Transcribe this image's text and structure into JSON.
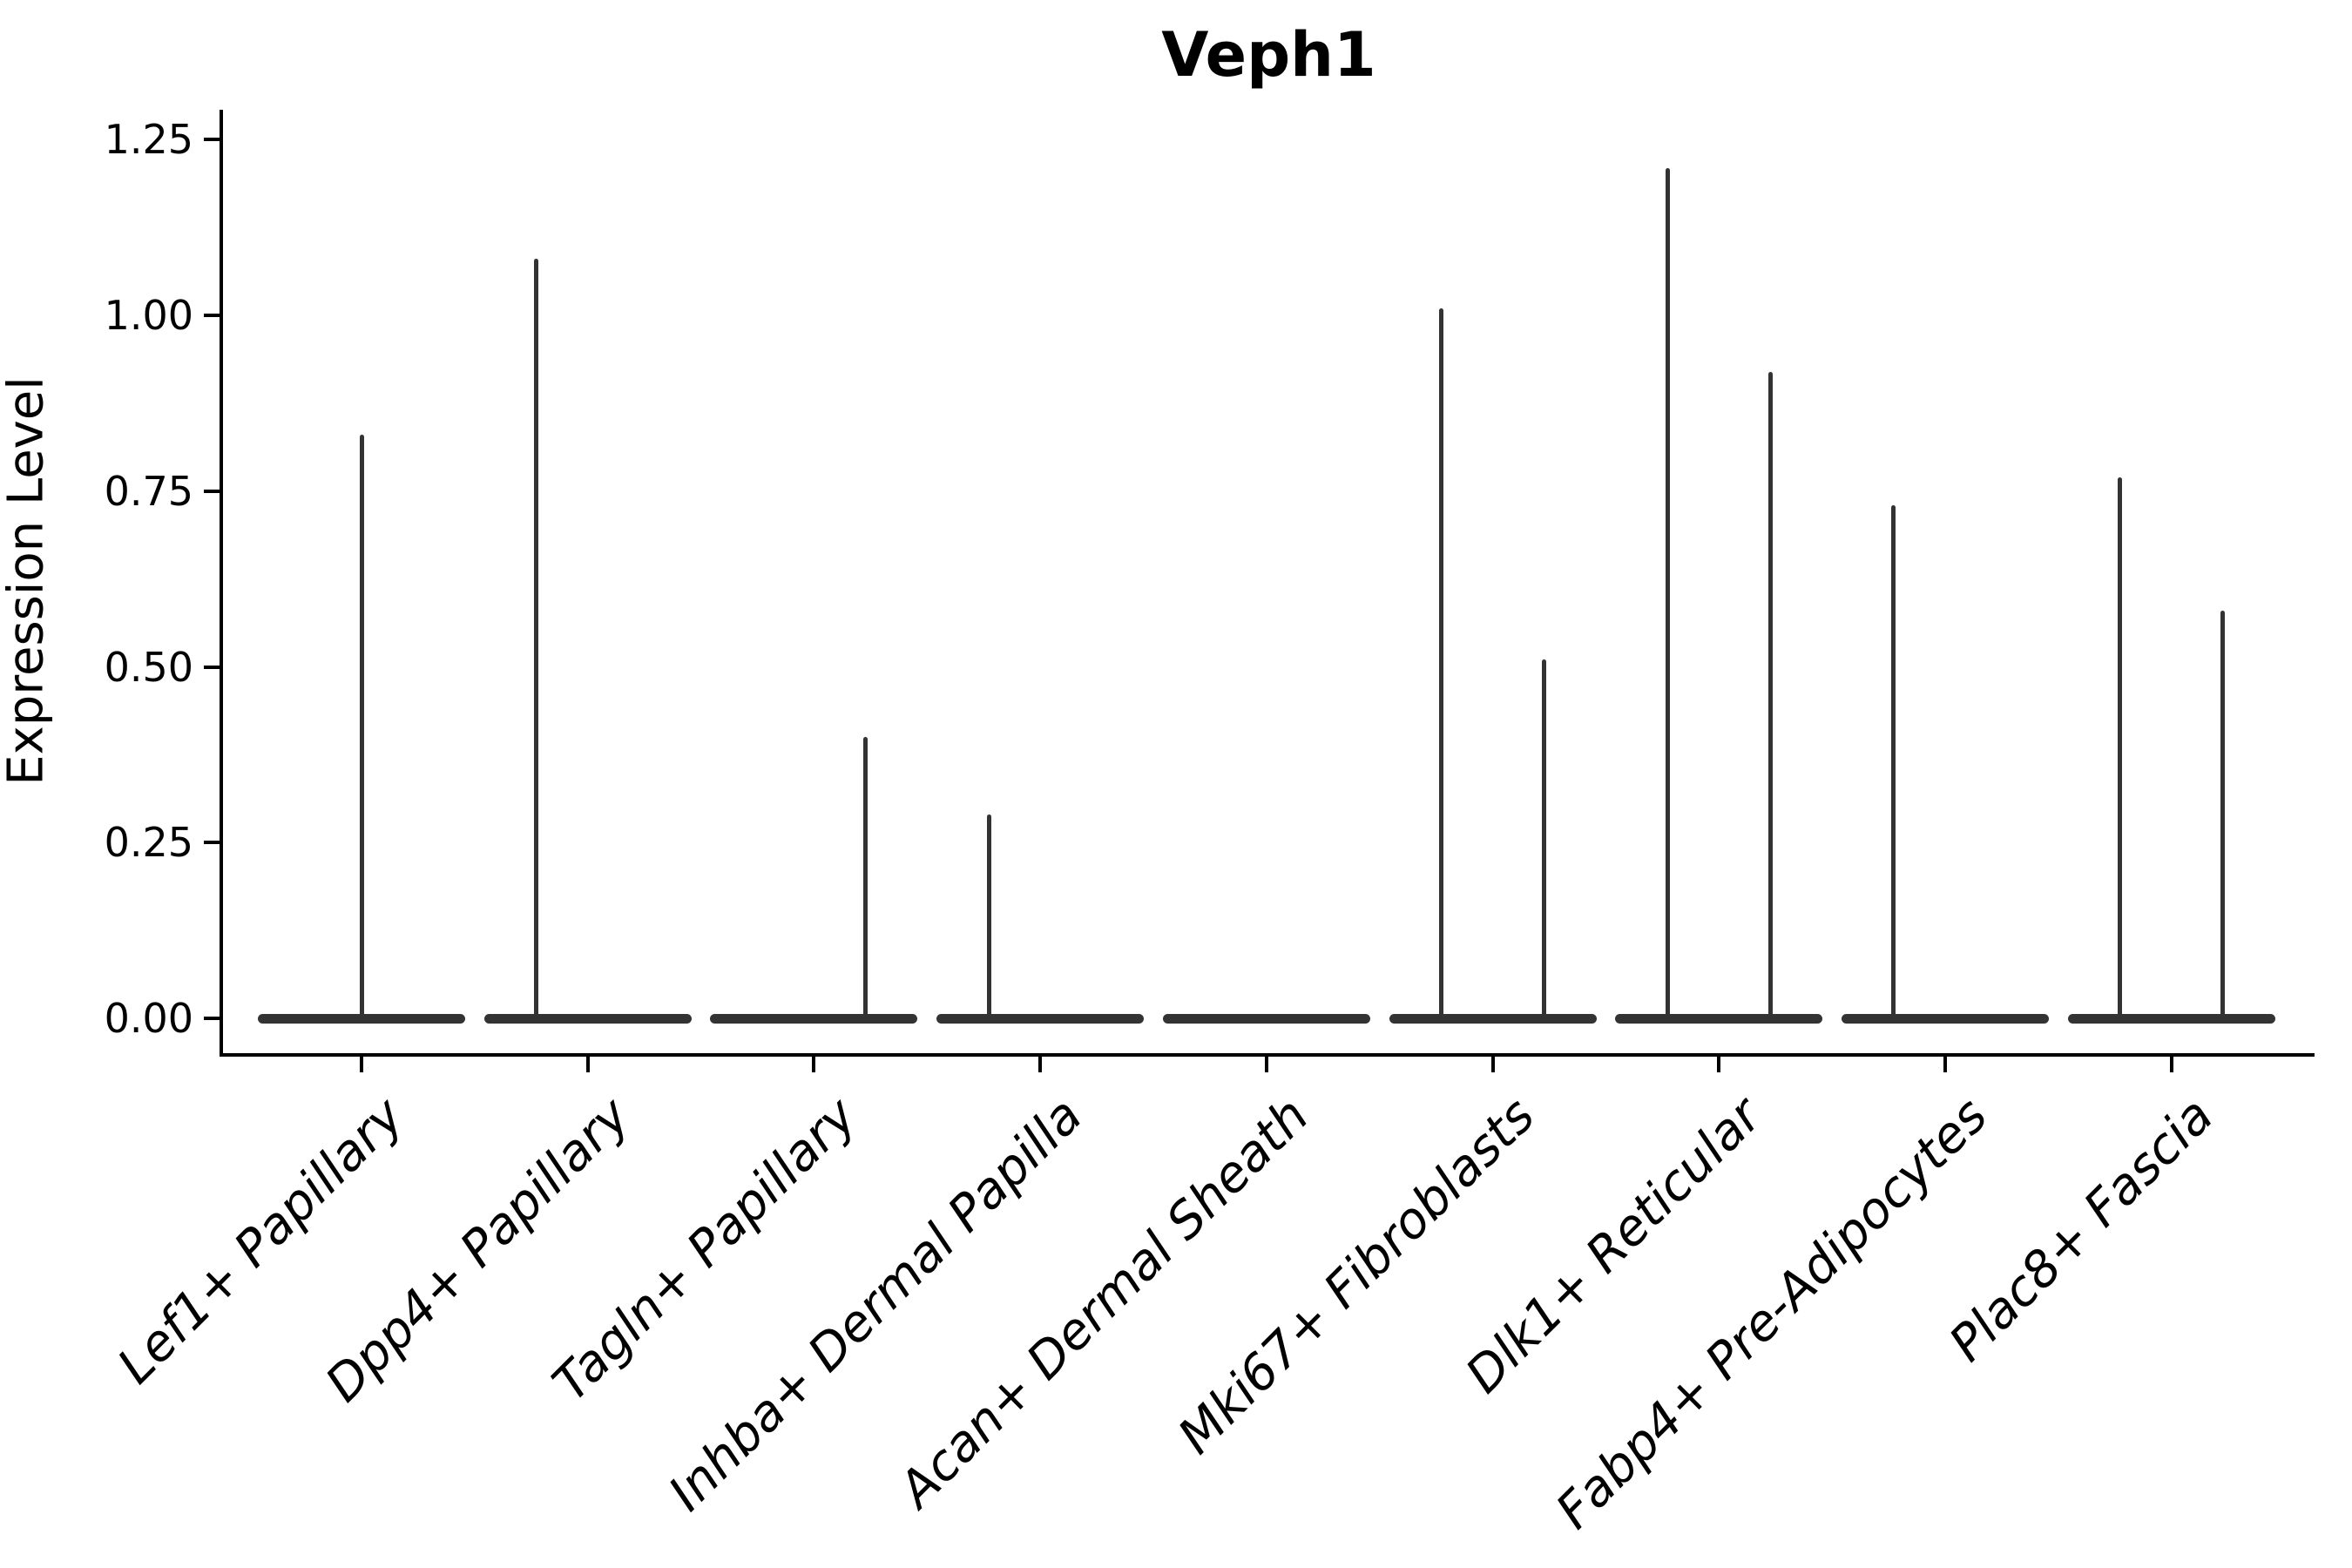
{
  "title": "Veph1",
  "y_axis": {
    "label": "Expression Level",
    "tick_labels": [
      "0.00",
      "0.25",
      "0.50",
      "0.75",
      "1.00",
      "1.25"
    ]
  },
  "x_axis": {
    "tick_labels": [
      "Lef1+ Papillary",
      "Dpp4+ Papillary",
      "Tagln+ Papillary",
      "Inhba+ Dermal Papilla",
      "Acan+ Dermal Sheath",
      "Mki67+ Fibroblasts",
      "Dlk1+ Reticular",
      "Fabp4+ Pre-Adipocytes",
      "Plac8+ Fascia"
    ]
  },
  "chart_data": {
    "type": "violin",
    "title": "Veph1",
    "xlabel": "",
    "ylabel": "Expression Level",
    "ylim": [
      -0.05,
      1.34
    ],
    "yticks": [
      {
        "label": "0.00",
        "value": 0.0
      },
      {
        "label": "0.25",
        "value": 0.25
      },
      {
        "label": "0.50",
        "value": 0.5
      },
      {
        "label": "0.75",
        "value": 0.75
      },
      {
        "label": "1.00",
        "value": 1.0
      },
      {
        "label": "1.25",
        "value": 1.25
      }
    ],
    "categories": [
      "Lef1+ Papillary",
      "Dpp4+ Papillary",
      "Tagln+ Papillary",
      "Inhba+ Dermal Papilla",
      "Acan+ Dermal Sheath",
      "Mki67+ Fibroblasts",
      "Dlk1+ Reticular",
      "Fabp4+ Pre-Adipocytes",
      "Plac8+ Fascia"
    ],
    "description": "Mostly-zero expression: each category shows a flat violin base at 0 with thin spikes up to the max expression value; spikes may sit at the category center or dodged left/right sub-positions.",
    "violins": [
      {
        "category": "Lef1+ Papillary",
        "base_value": 0.0,
        "spikes": [
          {
            "position": "center",
            "max": 0.83
          }
        ]
      },
      {
        "category": "Dpp4+ Papillary",
        "base_value": 0.0,
        "spikes": [
          {
            "position": "left",
            "max": 1.08
          }
        ]
      },
      {
        "category": "Tagln+ Papillary",
        "base_value": 0.0,
        "spikes": [
          {
            "position": "right",
            "max": 0.4
          }
        ]
      },
      {
        "category": "Inhba+ Dermal Papilla",
        "base_value": 0.0,
        "spikes": [
          {
            "position": "left",
            "max": 0.29
          }
        ]
      },
      {
        "category": "Acan+ Dermal Sheath",
        "base_value": 0.0,
        "spikes": []
      },
      {
        "category": "Mki67+ Fibroblasts",
        "base_value": 0.0,
        "spikes": [
          {
            "position": "left",
            "max": 1.01
          },
          {
            "position": "right",
            "max": 0.51
          }
        ]
      },
      {
        "category": "Dlk1+ Reticular",
        "base_value": 0.0,
        "spikes": [
          {
            "position": "left",
            "max": 1.21
          },
          {
            "position": "right",
            "max": 0.92
          }
        ]
      },
      {
        "category": "Fabp4+ Pre-Adipocytes",
        "base_value": 0.0,
        "spikes": [
          {
            "position": "left",
            "max": 0.73
          }
        ]
      },
      {
        "category": "Plac8+ Fascia",
        "base_value": 0.0,
        "spikes": [
          {
            "position": "left",
            "max": 0.77
          },
          {
            "position": "right",
            "max": 0.58
          }
        ]
      }
    ],
    "legend": "none",
    "grid": false,
    "colors": {
      "violin": "#333333",
      "axis": "#000000",
      "text": "#000000",
      "background": "#ffffff"
    }
  }
}
